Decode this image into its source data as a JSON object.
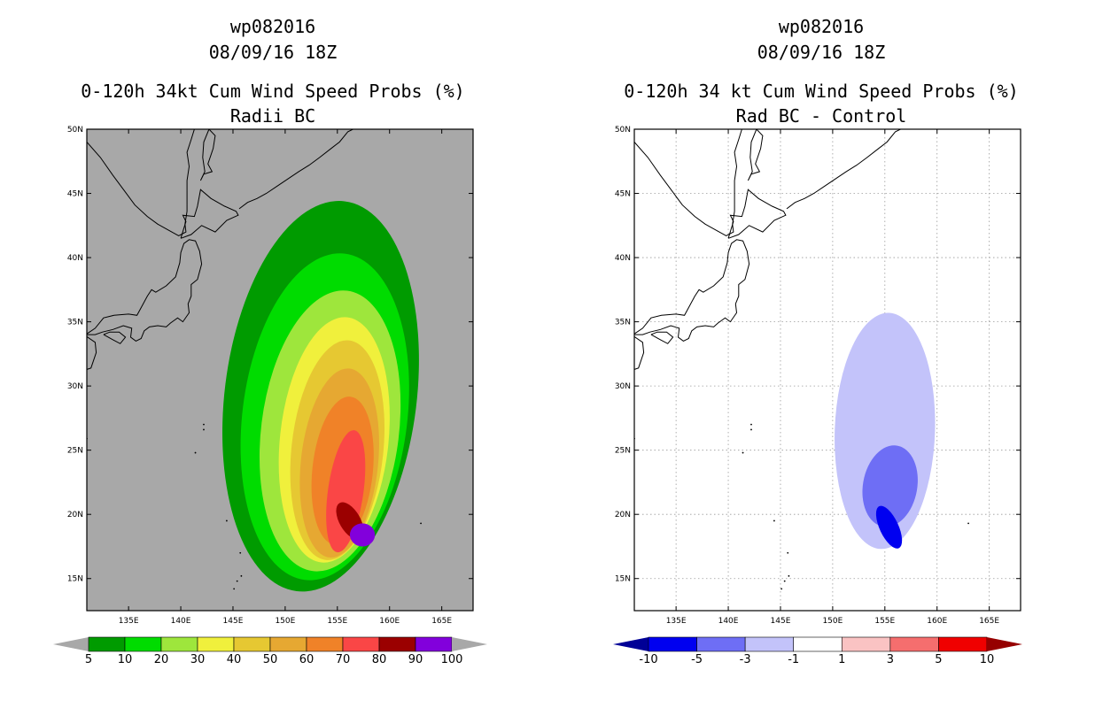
{
  "chart_data": [
    {
      "type": "heatmap",
      "storm_id": "wp082016",
      "date": "08/09/16 18Z",
      "title": "0-120h 34kt Cum Wind Speed Probs (%)",
      "subtitle": "Radii BC",
      "xlim": [
        131,
        168
      ],
      "ylim": [
        12.5,
        50
      ],
      "xticks": [
        135,
        140,
        145,
        150,
        155,
        160,
        165
      ],
      "yticks": [
        15,
        20,
        25,
        30,
        35,
        40,
        45,
        50
      ],
      "xtick_labels": [
        "135E",
        "140E",
        "145E",
        "150E",
        "155E",
        "160E",
        "165E"
      ],
      "ytick_labels": [
        "15N",
        "20N",
        "25N",
        "30N",
        "35N",
        "40N",
        "45N",
        "50N"
      ],
      "background": "#a8a8a8",
      "gridlines": false,
      "colorbar": {
        "labels": [
          "5",
          "10",
          "20",
          "30",
          "40",
          "50",
          "60",
          "70",
          "80",
          "90",
          "100"
        ],
        "colors": [
          "#009b00",
          "#00dc00",
          "#9ee63c",
          "#f0f03c",
          "#e6c832",
          "#e6a832",
          "#f08228",
          "#fa4646",
          "#9b0000",
          "#8200dc"
        ],
        "end_color": "#a8a8a8"
      },
      "levels": [
        {
          "min": 5,
          "max": 10,
          "color": "#009b00",
          "cx": 153.4,
          "cy": 29.2,
          "rx": 9.2,
          "ry": 15.3,
          "rot": 7
        },
        {
          "min": 10,
          "max": 20,
          "color": "#00dc00",
          "cx": 153.8,
          "cy": 27.6,
          "rx": 7.9,
          "ry": 12.8,
          "rot": 7
        },
        {
          "min": 20,
          "max": 30,
          "color": "#9ee63c",
          "cx": 154.3,
          "cy": 26.5,
          "rx": 6.6,
          "ry": 11.0,
          "rot": 7
        },
        {
          "min": 30,
          "max": 40,
          "color": "#f0f03c",
          "cx": 154.7,
          "cy": 25.8,
          "rx": 5.2,
          "ry": 9.6,
          "rot": 6
        },
        {
          "min": 40,
          "max": 50,
          "color": "#e6c832",
          "cx": 155.0,
          "cy": 25.0,
          "rx": 4.4,
          "ry": 8.6,
          "rot": 6
        },
        {
          "min": 50,
          "max": 60,
          "color": "#e6a832",
          "cx": 155.2,
          "cy": 24.0,
          "rx": 3.7,
          "ry": 7.4,
          "rot": 6
        },
        {
          "min": 60,
          "max": 70,
          "color": "#f08228",
          "cx": 155.5,
          "cy": 23.4,
          "rx": 2.9,
          "ry": 5.8,
          "rot": 6
        },
        {
          "min": 70,
          "max": 80,
          "color": "#fa4646",
          "cx": 155.8,
          "cy": 21.8,
          "rx": 1.7,
          "ry": 4.8,
          "rot": 8
        },
        {
          "min": 80,
          "max": 90,
          "color": "#9b0000",
          "cx": 156.2,
          "cy": 19.5,
          "rx": 1.0,
          "ry": 1.6,
          "rot": -30
        },
        {
          "min": 90,
          "max": 100,
          "color": "#8200dc",
          "cx": 157.4,
          "cy": 18.4,
          "rx": 1.2,
          "ry": 0.9,
          "rot": 0
        }
      ]
    },
    {
      "type": "heatmap",
      "storm_id": "wp082016",
      "date": "08/09/16 18Z",
      "title": "0-120h 34 kt Cum Wind Speed Probs (%)",
      "subtitle": "Rad BC - Control",
      "xlim": [
        131,
        168
      ],
      "ylim": [
        12.5,
        50
      ],
      "xticks": [
        135,
        140,
        145,
        150,
        155,
        160,
        165
      ],
      "yticks": [
        15,
        20,
        25,
        30,
        35,
        40,
        45,
        50
      ],
      "xtick_labels": [
        "135E",
        "140E",
        "145E",
        "150E",
        "155E",
        "160E",
        "165E"
      ],
      "ytick_labels": [
        "15N",
        "20N",
        "25N",
        "30N",
        "35N",
        "40N",
        "45N",
        "50N"
      ],
      "background": "#ffffff",
      "gridlines": true,
      "colorbar": {
        "labels": [
          "-10",
          "-5",
          "-3",
          "-1",
          "1",
          "3",
          "5",
          "10"
        ],
        "colors": [
          "#0000f0",
          "#6e6ef5",
          "#c3c3fa",
          "#ffffff",
          "#fac3c3",
          "#f56e6e",
          "#f00000"
        ],
        "end_low": "#000096",
        "end_high": "#960000"
      },
      "levels": [
        {
          "min": -3,
          "max": -1,
          "color": "#c3c3fa",
          "cx": 155.0,
          "cy": 26.5,
          "rx": 4.8,
          "ry": 9.2,
          "rot": 2
        },
        {
          "min": -5,
          "max": -3,
          "color": "#6e6ef5",
          "cx": 155.5,
          "cy": 22.2,
          "rx": 2.6,
          "ry": 3.2,
          "rot": 10
        },
        {
          "min": -10,
          "max": -5,
          "color": "#0000f0",
          "cx": 155.4,
          "cy": 19.0,
          "rx": 0.9,
          "ry": 1.8,
          "rot": -25
        }
      ]
    }
  ]
}
